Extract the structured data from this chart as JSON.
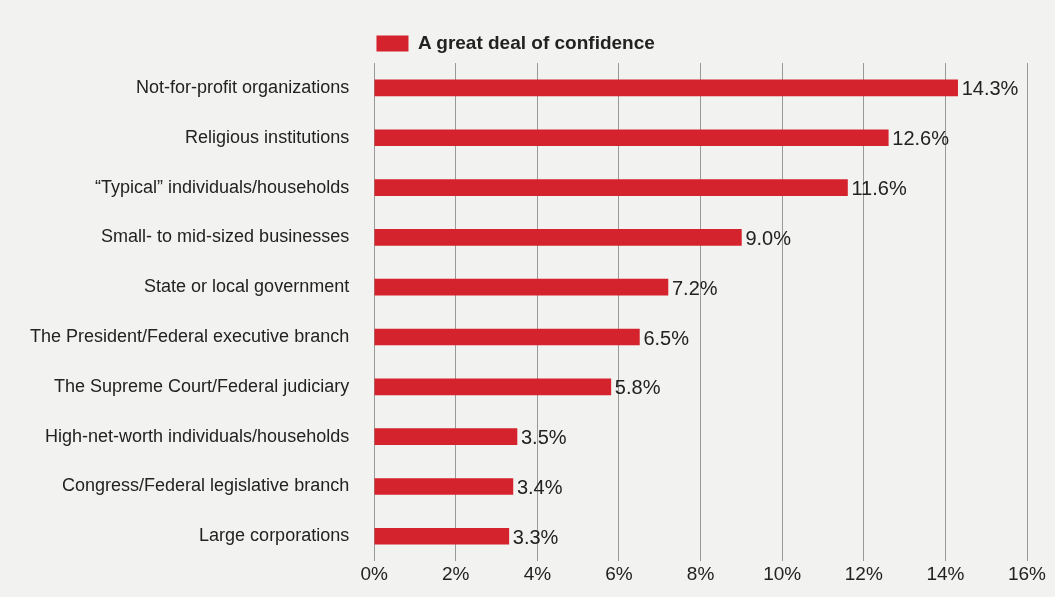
{
  "chart_data": {
    "type": "bar",
    "orientation": "horizontal",
    "categories": [
      "Not-for-profit organizations",
      "Religious institutions",
      "“Typical” individuals/households",
      "Small- to mid-sized businesses",
      "State or local government",
      "The President/Federal executive branch",
      "The Supreme Court/Federal judiciary",
      "High-net-worth individuals/households",
      "Congress/Federal legislative branch",
      "Large corporations"
    ],
    "series": [
      {
        "name": "A great deal of confidence",
        "color": "#d5232d",
        "values": [
          14.3,
          12.6,
          11.6,
          9.0,
          7.2,
          6.5,
          5.8,
          3.5,
          3.4,
          3.3
        ],
        "value_labels": [
          "14.3%",
          "12.6%",
          "11.6%",
          "9.0%",
          "7.2%",
          "6.5%",
          "5.8%",
          "3.5%",
          "3.4%",
          "3.3%"
        ]
      }
    ],
    "xlim": [
      0,
      16
    ],
    "xticks": [
      {
        "value": 0,
        "label": "0%"
      },
      {
        "value": 2,
        "label": "2%"
      },
      {
        "value": 4,
        "label": "4%"
      },
      {
        "value": 6,
        "label": "6%"
      },
      {
        "value": 8,
        "label": "8%"
      },
      {
        "value": 10,
        "label": "10%"
      },
      {
        "value": 12,
        "label": "12%"
      },
      {
        "value": 14,
        "label": "14%"
      },
      {
        "value": 16,
        "label": "16%"
      }
    ],
    "grid": "x",
    "legend": "top"
  }
}
